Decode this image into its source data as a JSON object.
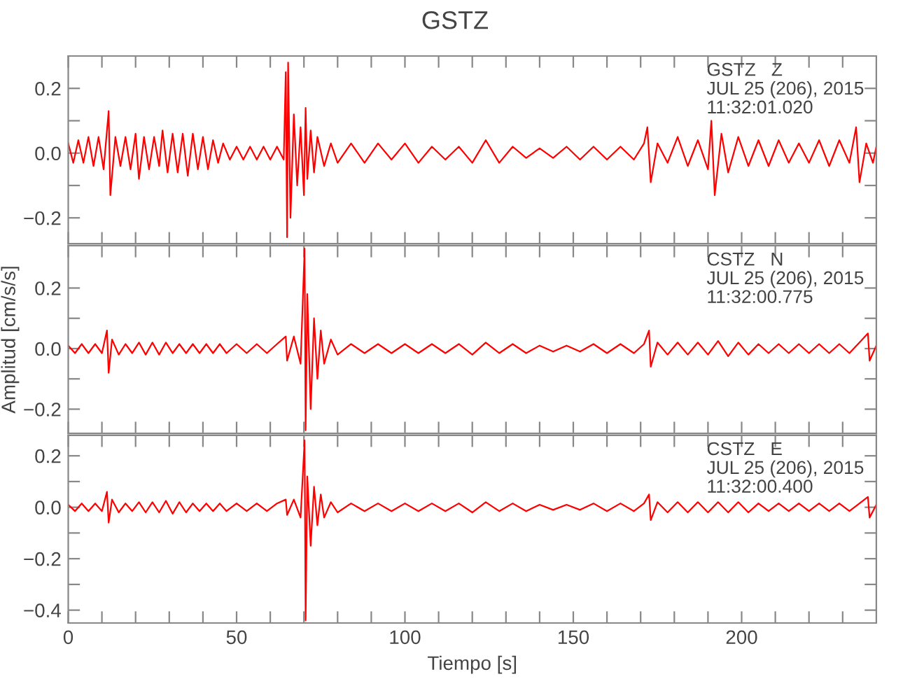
{
  "chart_data": [
    {
      "type": "line",
      "title": "GSTZ",
      "xlim": [
        0,
        240
      ],
      "ylim": [
        -0.28,
        0.3
      ],
      "tick_labels": "y",
      "grid": false,
      "legend": false,
      "xticks": [
        {
          "value": 0,
          "label": null
        },
        {
          "value": 10,
          "label": null
        },
        {
          "value": 20,
          "label": null
        },
        {
          "value": 30,
          "label": null
        },
        {
          "value": 40,
          "label": null
        },
        {
          "value": 50,
          "label": null
        },
        {
          "value": 60,
          "label": null
        },
        {
          "value": 70,
          "label": null
        },
        {
          "value": 80,
          "label": null
        },
        {
          "value": 90,
          "label": null
        },
        {
          "value": 100,
          "label": null
        },
        {
          "value": 110,
          "label": null
        },
        {
          "value": 120,
          "label": null
        },
        {
          "value": 130,
          "label": null
        },
        {
          "value": 140,
          "label": null
        },
        {
          "value": 150,
          "label": null
        },
        {
          "value": 160,
          "label": null
        },
        {
          "value": 170,
          "label": null
        },
        {
          "value": 180,
          "label": null
        },
        {
          "value": 190,
          "label": null
        },
        {
          "value": 200,
          "label": null
        },
        {
          "value": 210,
          "label": null
        },
        {
          "value": 220,
          "label": null
        },
        {
          "value": 230,
          "label": null
        }
      ],
      "yticks": [
        {
          "value": -0.2,
          "label": "−0.2"
        },
        {
          "value": -0.1,
          "label": null
        },
        {
          "value": 0,
          "label": "0.0"
        },
        {
          "value": 0.1,
          "label": null
        },
        {
          "value": 0.2,
          "label": "0.2"
        }
      ],
      "annotations": [
        "GSTZ   Z",
        "JUL 25 (206), 2015",
        "11:32:01.020"
      ],
      "series": [
        {
          "color": "#ff0000",
          "x": [
            0,
            1.5,
            3,
            4.5,
            6,
            7.5,
            9,
            10.5,
            12,
            12.5,
            14,
            15.5,
            17,
            18.5,
            20,
            21,
            22.5,
            24,
            25.5,
            27,
            28,
            29.5,
            31,
            32.5,
            34,
            35.5,
            37,
            38.5,
            40,
            41.5,
            43,
            44.5,
            46,
            48,
            50,
            52,
            54,
            56,
            58,
            60,
            62,
            64,
            64.6,
            65,
            65.3,
            66,
            67,
            68,
            69,
            70,
            70.5,
            71,
            72,
            73,
            74,
            76,
            78,
            80,
            84,
            88,
            92,
            96,
            100,
            104,
            108,
            112,
            116,
            120,
            124,
            128,
            132,
            136,
            140,
            144,
            148,
            152,
            156,
            160,
            164,
            168,
            171,
            172,
            173,
            175,
            178,
            181,
            184,
            187,
            190,
            191,
            192,
            194,
            196,
            199,
            202,
            205,
            208,
            211,
            214,
            217,
            220,
            223,
            226,
            229,
            232,
            234,
            235,
            237,
            239,
            240
          ],
          "values": [
            0.03,
            -0.03,
            0.04,
            -0.03,
            0.05,
            -0.04,
            0.05,
            -0.05,
            0.13,
            -0.13,
            0.05,
            -0.04,
            0.05,
            -0.05,
            0.06,
            -0.08,
            0.05,
            -0.05,
            0.05,
            -0.04,
            0.07,
            -0.06,
            0.06,
            -0.06,
            0.06,
            -0.07,
            0.06,
            -0.05,
            0.05,
            -0.05,
            0.04,
            -0.03,
            0.03,
            -0.02,
            0.02,
            -0.02,
            0.02,
            -0.02,
            0.02,
            -0.02,
            0.02,
            -0.02,
            0.25,
            -0.26,
            0.28,
            -0.2,
            0.12,
            -0.1,
            0.08,
            -0.13,
            0.14,
            -0.08,
            0.07,
            -0.06,
            0.05,
            -0.04,
            0.03,
            -0.03,
            0.03,
            -0.03,
            0.03,
            -0.02,
            0.03,
            -0.03,
            0.02,
            -0.02,
            0.02,
            -0.03,
            0.04,
            -0.03,
            0.02,
            -0.015,
            0.015,
            -0.015,
            0.02,
            -0.02,
            0.02,
            -0.02,
            0.02,
            -0.02,
            0.03,
            0.08,
            -0.09,
            0.03,
            -0.03,
            0.05,
            -0.04,
            0.04,
            -0.05,
            0.1,
            -0.13,
            0.06,
            -0.06,
            0.05,
            -0.04,
            0.04,
            -0.04,
            0.04,
            -0.03,
            0.03,
            -0.03,
            0.04,
            -0.04,
            0.04,
            -0.03,
            0.08,
            -0.09,
            0.03,
            -0.03,
            0.02
          ]
        }
      ]
    },
    {
      "type": "line",
      "ylabel": "Amplitud [cm/s/s]",
      "xlim": [
        0,
        240
      ],
      "ylim": [
        -0.28,
        0.34
      ],
      "tick_labels": "y",
      "grid": false,
      "legend": false,
      "xticks": [
        {
          "value": 0,
          "label": null
        },
        {
          "value": 10,
          "label": null
        },
        {
          "value": 20,
          "label": null
        },
        {
          "value": 30,
          "label": null
        },
        {
          "value": 40,
          "label": null
        },
        {
          "value": 50,
          "label": null
        },
        {
          "value": 60,
          "label": null
        },
        {
          "value": 70,
          "label": null
        },
        {
          "value": 80,
          "label": null
        },
        {
          "value": 90,
          "label": null
        },
        {
          "value": 100,
          "label": null
        },
        {
          "value": 110,
          "label": null
        },
        {
          "value": 120,
          "label": null
        },
        {
          "value": 130,
          "label": null
        },
        {
          "value": 140,
          "label": null
        },
        {
          "value": 150,
          "label": null
        },
        {
          "value": 160,
          "label": null
        },
        {
          "value": 170,
          "label": null
        },
        {
          "value": 180,
          "label": null
        },
        {
          "value": 190,
          "label": null
        },
        {
          "value": 200,
          "label": null
        },
        {
          "value": 210,
          "label": null
        },
        {
          "value": 220,
          "label": null
        },
        {
          "value": 230,
          "label": null
        }
      ],
      "yticks": [
        {
          "value": -0.2,
          "label": "−0.2"
        },
        {
          "value": -0.1,
          "label": null
        },
        {
          "value": 0,
          "label": "0.0"
        },
        {
          "value": 0.1,
          "label": null
        },
        {
          "value": 0.2,
          "label": "0.2"
        }
      ],
      "annotations": [
        "CSTZ   N",
        "JUL 25 (206), 2015",
        "11:32:00.775"
      ],
      "series": [
        {
          "color": "#ff0000",
          "x": [
            0,
            2,
            4,
            6,
            8,
            10,
            11.5,
            12,
            13,
            15,
            17,
            19,
            21,
            23,
            25,
            27,
            29,
            31,
            33,
            35,
            37,
            39,
            41,
            43,
            45,
            47,
            50,
            53,
            56,
            59,
            62,
            64.6,
            65,
            67,
            69,
            70.2,
            70.5,
            71,
            72,
            73,
            74,
            75,
            76,
            78,
            80,
            84,
            88,
            92,
            96,
            100,
            104,
            108,
            112,
            116,
            120,
            124,
            128,
            132,
            136,
            140,
            144,
            148,
            152,
            156,
            160,
            164,
            168,
            171,
            172.5,
            173,
            175,
            178,
            181,
            184,
            187,
            190,
            193,
            196,
            199,
            202,
            205,
            208,
            211,
            214,
            217,
            220,
            223,
            226,
            229,
            232,
            235,
            237.5,
            238,
            240
          ],
          "values": [
            0.01,
            -0.015,
            0.015,
            -0.015,
            0.015,
            -0.015,
            0.06,
            -0.08,
            0.03,
            -0.02,
            0.015,
            -0.015,
            0.02,
            -0.02,
            0.02,
            -0.02,
            0.02,
            -0.015,
            0.015,
            -0.015,
            0.015,
            -0.015,
            0.015,
            -0.015,
            0.015,
            -0.015,
            0.015,
            -0.015,
            0.015,
            -0.015,
            0.015,
            0.04,
            -0.04,
            0.04,
            -0.05,
            0.33,
            -0.27,
            0.18,
            -0.2,
            0.1,
            -0.1,
            0.06,
            -0.05,
            0.03,
            -0.02,
            0.015,
            -0.015,
            0.015,
            -0.015,
            0.015,
            -0.015,
            0.015,
            -0.015,
            0.015,
            -0.02,
            0.02,
            -0.015,
            0.015,
            -0.015,
            0.01,
            -0.01,
            0.01,
            -0.01,
            0.015,
            -0.015,
            0.015,
            -0.015,
            0.015,
            0.06,
            -0.06,
            0.02,
            -0.02,
            0.02,
            -0.02,
            0.02,
            -0.02,
            0.025,
            -0.025,
            0.02,
            -0.02,
            0.015,
            -0.015,
            0.015,
            -0.015,
            0.015,
            -0.015,
            0.015,
            -0.015,
            0.015,
            -0.015,
            0.02,
            0.05,
            -0.04,
            0.01
          ]
        }
      ]
    },
    {
      "type": "line",
      "xlabel": "Tiempo [s]",
      "xlim": [
        0,
        240
      ],
      "ylim": [
        -0.45,
        0.28
      ],
      "grid": false,
      "legend": false,
      "xticks": [
        0,
        {
          "value": 10,
          "label": null
        },
        {
          "value": 20,
          "label": null
        },
        {
          "value": 30,
          "label": null
        },
        {
          "value": 40,
          "label": null
        },
        50,
        {
          "value": 60,
          "label": null
        },
        {
          "value": 70,
          "label": null
        },
        {
          "value": 80,
          "label": null
        },
        {
          "value": 90,
          "label": null
        },
        100,
        {
          "value": 110,
          "label": null
        },
        {
          "value": 120,
          "label": null
        },
        {
          "value": 130,
          "label": null
        },
        {
          "value": 140,
          "label": null
        },
        150,
        {
          "value": 160,
          "label": null
        },
        {
          "value": 170,
          "label": null
        },
        {
          "value": 180,
          "label": null
        },
        {
          "value": 190,
          "label": null
        },
        200,
        {
          "value": 210,
          "label": null
        },
        {
          "value": 220,
          "label": null
        },
        {
          "value": 230,
          "label": null
        }
      ],
      "yticks": [
        {
          "value": -0.4,
          "label": "−0.4"
        },
        {
          "value": -0.3,
          "label": null
        },
        {
          "value": -0.2,
          "label": "−0.2"
        },
        {
          "value": -0.1,
          "label": null
        },
        {
          "value": 0,
          "label": "0.0"
        },
        {
          "value": 0.1,
          "label": null
        },
        {
          "value": 0.2,
          "label": "0.2"
        }
      ],
      "annotations": [
        "CSTZ   E",
        "JUL 25 (206), 2015",
        "11:32:00.400"
      ],
      "series": [
        {
          "color": "#ff0000",
          "x": [
            0,
            2,
            4,
            6,
            8,
            10,
            11.5,
            12,
            13,
            15,
            17,
            19,
            21,
            23,
            25,
            27,
            29,
            31,
            33,
            35,
            37,
            39,
            41,
            43,
            45,
            47,
            50,
            53,
            56,
            59,
            62,
            64.6,
            65,
            67,
            69,
            70.2,
            70.5,
            71,
            72,
            73,
            74,
            75,
            76,
            78,
            80,
            84,
            88,
            92,
            96,
            100,
            104,
            108,
            112,
            116,
            120,
            124,
            128,
            132,
            136,
            140,
            144,
            148,
            152,
            156,
            160,
            164,
            168,
            171,
            172.5,
            173,
            175,
            178,
            181,
            184,
            187,
            190,
            193,
            196,
            199,
            202,
            205,
            208,
            211,
            214,
            217,
            220,
            223,
            226,
            229,
            232,
            235,
            237.5,
            238,
            240
          ],
          "values": [
            0.01,
            -0.015,
            0.015,
            -0.015,
            0.015,
            -0.015,
            0.06,
            -0.06,
            0.03,
            -0.02,
            0.015,
            -0.015,
            0.02,
            -0.02,
            0.02,
            -0.02,
            0.025,
            -0.025,
            0.02,
            -0.02,
            0.015,
            -0.015,
            0.015,
            -0.015,
            0.015,
            -0.015,
            0.015,
            -0.015,
            0.015,
            -0.015,
            0.015,
            0.03,
            -0.03,
            0.03,
            -0.04,
            0.26,
            -0.44,
            0.12,
            -0.15,
            0.08,
            -0.07,
            0.05,
            -0.04,
            0.02,
            -0.02,
            0.015,
            -0.015,
            0.015,
            -0.015,
            0.015,
            -0.015,
            0.015,
            -0.015,
            0.015,
            -0.02,
            0.02,
            -0.015,
            0.015,
            -0.015,
            0.01,
            -0.01,
            0.01,
            -0.01,
            0.015,
            -0.015,
            0.015,
            -0.015,
            0.015,
            0.05,
            -0.05,
            0.02,
            -0.02,
            0.02,
            -0.02,
            0.02,
            -0.02,
            0.02,
            -0.02,
            0.02,
            -0.02,
            0.015,
            -0.015,
            0.015,
            -0.015,
            0.015,
            -0.015,
            0.015,
            -0.015,
            0.015,
            -0.015,
            0.015,
            0.04,
            -0.04,
            0.01
          ]
        }
      ]
    }
  ]
}
